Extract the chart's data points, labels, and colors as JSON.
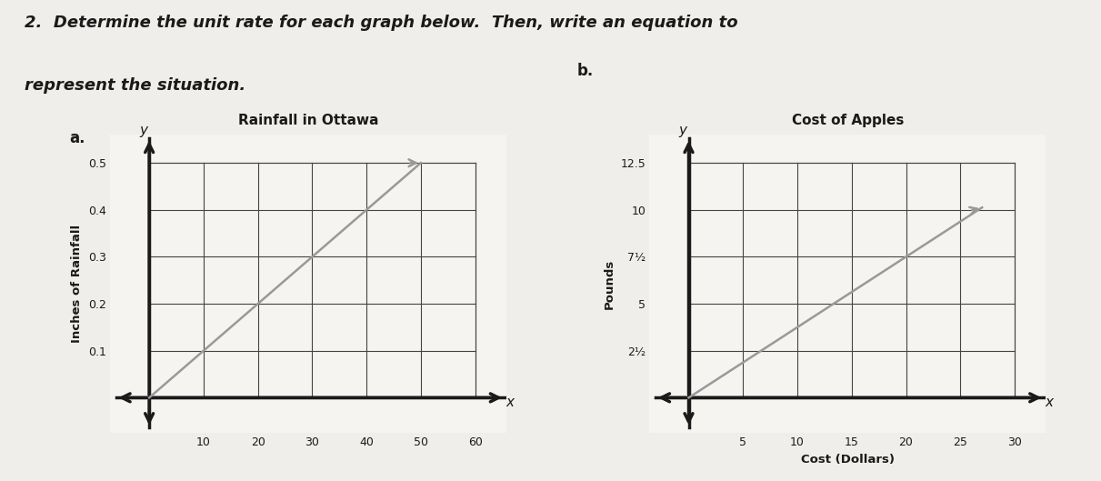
{
  "title_line1": "2.  Determine the unit rate for each graph below.  Then, write an equation to",
  "title_line2": "represent the situation.",
  "title_fontsize": 13,
  "bg_color": "#f0eeea",
  "graph_a": {
    "label": "a.",
    "chart_title": "Rainfall in Ottawa",
    "ylabel": "Inches of Rainfall",
    "xlabel": "",
    "xlim": [
      0,
      60
    ],
    "ylim": [
      0,
      0.5
    ],
    "xticks": [
      10,
      20,
      30,
      40,
      50,
      60
    ],
    "yticks": [
      0.1,
      0.2,
      0.3,
      0.4,
      0.5
    ],
    "ytick_labels": [
      "0.1",
      "0.2",
      "0.3",
      "0.4",
      "0.5"
    ],
    "line_x": [
      0,
      50
    ],
    "line_y": [
      0,
      0.5
    ],
    "line_color": "#999999",
    "line_width": 1.8,
    "axis_color": "#1a1a1a",
    "grid_color": "#444444",
    "grid_lw": 0.8
  },
  "graph_b": {
    "label": "b.",
    "chart_title": "Cost of Apples",
    "xlabel": "Cost (Dollars)",
    "ylabel": "Pounds",
    "xlim": [
      0,
      30
    ],
    "ylim": [
      0,
      12.5
    ],
    "xticks": [
      5,
      10,
      15,
      20,
      25,
      30
    ],
    "yticks": [
      2.5,
      5.0,
      7.5,
      10.0,
      12.5
    ],
    "ytick_labels": [
      "2½",
      "5",
      "7½",
      "10",
      "12.5"
    ],
    "line_x": [
      0,
      27
    ],
    "line_y": [
      0,
      10.125
    ],
    "line_color": "#999999",
    "line_width": 1.8,
    "axis_color": "#1a1a1a",
    "grid_color": "#444444",
    "grid_lw": 0.8
  }
}
